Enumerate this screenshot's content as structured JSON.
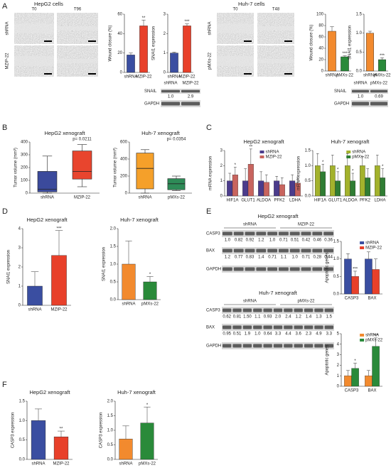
{
  "panel_letters": [
    "A",
    "B",
    "C",
    "D",
    "E",
    "F"
  ],
  "micrographs": [
    {
      "title": "HepG2 cells",
      "columns": [
        "T0",
        "T96"
      ],
      "rows": [
        "shRNA",
        "MZIP-22"
      ]
    },
    {
      "title": "Huh-7 cells",
      "columns": [
        "T0",
        "T48"
      ],
      "rows": [
        "shRNA",
        "pMXs-22"
      ]
    }
  ],
  "blots": [
    {
      "columns": [
        "shRNA",
        "MZIP-22"
      ],
      "rows": [
        {
          "name": "SNAIL",
          "values": [
            "1.0",
            "2.9"
          ]
        },
        {
          "name": "GAPDH"
        }
      ]
    },
    {
      "columns": [
        "shRNA",
        "pMXs-22"
      ],
      "rows": [
        {
          "name": "SNAIL",
          "values": [
            "1.0",
            "0.69"
          ]
        },
        {
          "name": "GAPDH"
        }
      ]
    },
    {
      "title": "HepG2 xenograft",
      "columns": [
        "shRNA",
        "MZIP-22"
      ],
      "rows": [
        {
          "name": "CASP3",
          "values": [
            "1.0",
            "0.82",
            "0.92",
            "1.2",
            "1.0",
            "0.71",
            "0.51",
            "0.42",
            "0.46",
            "0.36"
          ]
        },
        {
          "name": "BAX",
          "values": [
            "1.2",
            "0.77",
            "0.83",
            "1.4",
            "0.71",
            "1.1",
            "1.0",
            "0.71",
            "0.28",
            "0.44"
          ]
        },
        {
          "name": "GAPDH"
        }
      ]
    },
    {
      "title": "Huh-7 xenograft",
      "columns": [
        "shRNA",
        "pMXs-22"
      ],
      "rows": [
        {
          "name": "CASP3",
          "values": [
            "0.62",
            "0.81",
            "1.50",
            "1.1",
            "0.93",
            "2.0",
            "2.4",
            "1.2",
            "1.4",
            "1.3",
            "1.5"
          ]
        },
        {
          "name": "BAX",
          "values": [
            "0.95",
            "0.51",
            "1.9",
            "1.0",
            "0.64",
            "3.3",
            "4.4",
            "3.6",
            "2.3",
            "4.9",
            "3.3"
          ]
        },
        {
          "name": "GAPDH"
        }
      ]
    }
  ],
  "chart_data": [
    {
      "type": "bar",
      "ylabel": "Wound closure (%)",
      "categories": [
        "shRNA",
        "MZIP-22"
      ],
      "values": [
        18,
        48
      ],
      "errors": [
        2,
        6
      ],
      "significance": [
        null,
        "**"
      ],
      "colors": [
        "#3a4ea1",
        "#e8402a"
      ],
      "ylim": [
        0,
        60
      ],
      "yticks": [
        0,
        20,
        40,
        60
      ]
    },
    {
      "type": "bar",
      "ylabel": "SNAI1 expression",
      "categories": [
        "shRNA",
        "MZIP-22"
      ],
      "values": [
        1.0,
        2.4
      ],
      "errors": [
        0.05,
        0.1
      ],
      "significance": [
        null,
        "***"
      ],
      "colors": [
        "#3a4ea1",
        "#e8402a"
      ],
      "ylim": [
        0,
        3
      ],
      "yticks": [
        0,
        1,
        2,
        3
      ]
    },
    {
      "type": "bar",
      "ylabel": "Wound closure (%)",
      "categories": [
        "shRNA",
        "pMXs-22"
      ],
      "values": [
        70,
        25
      ],
      "errors": [
        8,
        2
      ],
      "significance": [
        null,
        "***"
      ],
      "colors": [
        "#f28a2e",
        "#2a8a3a"
      ],
      "ylim": [
        0,
        100
      ],
      "yticks": [
        0,
        20,
        40,
        60,
        80,
        100
      ]
    },
    {
      "type": "bar",
      "ylabel": "SNAI1 expression",
      "categories": [
        "shRNA",
        "pMXs-22"
      ],
      "values": [
        1.0,
        0.3
      ],
      "errors": [
        0.05,
        0.05
      ],
      "significance": [
        null,
        "***"
      ],
      "colors": [
        "#f28a2e",
        "#2a8a3a"
      ],
      "ylim": [
        0,
        1.5
      ],
      "yticks": [
        {
          "value": 0,
          "label": "0.0"
        },
        {
          "value": 0.5,
          "label": "0.5"
        },
        {
          "value": 1,
          "label": "1.0"
        },
        {
          "value": 1.5,
          "label": "1.5"
        }
      ]
    },
    {
      "type": "box",
      "title": "HepG2 xenograft",
      "ylabel": "Tumor volume (mm³)",
      "annotation": "p= 0.0211",
      "categories": [
        "shRNA",
        "MZIP-22"
      ],
      "boxes": [
        {
          "min": 0,
          "q1": 10,
          "median": 30,
          "q3": 170,
          "max": 290
        },
        {
          "min": 50,
          "q1": 110,
          "median": 170,
          "q3": 330,
          "max": 380
        }
      ],
      "colors": [
        "#3b4a9c",
        "#e8452e"
      ],
      "ylim": [
        0,
        400
      ],
      "yticks": [
        0,
        100,
        200,
        300,
        400
      ]
    },
    {
      "type": "box",
      "title": "Huh-7 xenograft",
      "ylabel": "Tumor volume (mm³)",
      "annotation": "p= 0.0354",
      "categories": [
        "shRNA",
        "pMXs-22"
      ],
      "boxes": [
        {
          "min": 0,
          "q1": 50,
          "median": 290,
          "q3": 470,
          "max": 510
        },
        {
          "min": 30,
          "q1": 40,
          "median": 110,
          "q3": 170,
          "max": 200
        }
      ],
      "colors": [
        "#f5a02a",
        "#2e8b57"
      ],
      "ylim": [
        0,
        600
      ],
      "yticks": [
        0,
        200,
        400,
        600
      ]
    },
    {
      "type": "grouped_bar",
      "title": "HepG2 xenograft",
      "ylabel": "mRNA expression",
      "categories": [
        "HIF1A",
        "GLUT1",
        "ALDOA",
        "PFK2",
        "LDHA"
      ],
      "series": [
        {
          "name": "shRNA",
          "color": "#4b3c8c",
          "values": [
            1,
            1,
            1,
            1,
            1
          ],
          "errors": [
            0.5,
            0.8,
            0.6,
            0.3,
            0.4
          ],
          "significance": [
            null,
            null,
            null,
            null,
            null
          ]
        },
        {
          "name": "MZIP-22",
          "color": "#c8645e",
          "values": [
            1.4,
            2.1,
            0.9,
            0.75,
            0.85
          ],
          "errors": [
            0.5,
            1.0,
            0.5,
            0.45,
            0.4
          ],
          "significance": [
            "*",
            "**",
            null,
            null,
            null
          ]
        }
      ],
      "ylim": [
        0,
        3
      ],
      "yticks": [
        0,
        1,
        2,
        3
      ]
    },
    {
      "type": "grouped_bar",
      "title": "Huh-7 xenograft",
      "ylabel": "mRNA expression",
      "categories": [
        "HIF1A",
        "GLUT1",
        "ALDOA",
        "PFK2",
        "LDHA"
      ],
      "series": [
        {
          "name": "shRNA",
          "color": "#a3b22c",
          "values": [
            1,
            1,
            1,
            1,
            1
          ],
          "errors": [
            0.4,
            0.35,
            0.4,
            0.3,
            0.35
          ],
          "significance": [
            null,
            null,
            null,
            null,
            null
          ]
        },
        {
          "name": "pMXs-22",
          "color": "#2f7d33",
          "values": [
            0.8,
            0.5,
            0.5,
            0.6,
            0.6
          ],
          "errors": [
            0.25,
            0.3,
            0.25,
            0.3,
            0.3
          ],
          "significance": [
            "*",
            "*",
            "*",
            null,
            "*"
          ]
        }
      ],
      "ylim": [
        0,
        1.5
      ],
      "yticks": [
        {
          "value": 0,
          "label": "0.0"
        },
        {
          "value": 0.5,
          "label": "0.5"
        },
        {
          "value": 1,
          "label": "1.0"
        },
        {
          "value": 1.5,
          "label": "1.5"
        }
      ]
    },
    {
      "type": "bar",
      "title": "HepG2 xenograft",
      "ylabel": "SNAI1 expression",
      "categories": [
        "shRNA",
        "MZIP-22"
      ],
      "values": [
        1.0,
        2.6
      ],
      "errors": [
        0.75,
        1.3
      ],
      "significance": [
        null,
        "***"
      ],
      "colors": [
        "#3a4ea1",
        "#e8402a"
      ],
      "ylim": [
        0,
        4
      ],
      "yticks": [
        0,
        1,
        2,
        3,
        4
      ]
    },
    {
      "type": "bar",
      "title": "Huh-7 xenograft",
      "ylabel": "SNAI1 expression",
      "categories": [
        "shRNA",
        "pMXs-22"
      ],
      "values": [
        1.0,
        0.5
      ],
      "errors": [
        0.65,
        0.15
      ],
      "significance": [
        null,
        "*"
      ],
      "colors": [
        "#f28a2e",
        "#2a8a3a"
      ],
      "ylim": [
        0,
        2
      ],
      "yticks": [
        {
          "value": 0,
          "label": "0.0"
        },
        {
          "value": 0.5,
          "label": "0.5"
        },
        {
          "value": 1,
          "label": "1.0"
        },
        {
          "value": 1.5,
          "label": "1.5"
        },
        {
          "value": 2,
          "label": "2.0"
        }
      ]
    },
    {
      "type": "grouped_bar",
      "ylabel": "Apoptotic genes",
      "categories": [
        "CASP3",
        "BAX"
      ],
      "series": [
        {
          "name": "shRNA",
          "color": "#3a4ea1",
          "values": [
            1,
            1
          ],
          "errors": [
            0.15,
            0.2
          ],
          "significance": [
            null,
            null
          ]
        },
        {
          "name": "MZIP-22",
          "color": "#e8402a",
          "values": [
            0.5,
            0.7
          ],
          "errors": [
            0.15,
            0.3
          ],
          "significance": [
            "***",
            null
          ]
        }
      ],
      "ylim": [
        0,
        1.5
      ],
      "yticks": [
        {
          "value": 0,
          "label": "0.0"
        },
        {
          "value": 0.5,
          "label": "0.5"
        },
        {
          "value": 1,
          "label": "1.0"
        },
        {
          "value": 1.5,
          "label": "1.5"
        }
      ]
    },
    {
      "type": "grouped_bar",
      "ylabel": "Apoptotic genes",
      "categories": [
        "CASP3",
        "BAX"
      ],
      "series": [
        {
          "name": "shRNA",
          "color": "#f28a2e",
          "values": [
            1,
            1
          ],
          "errors": [
            0.5,
            0.5
          ],
          "significance": [
            null,
            null
          ]
        },
        {
          "name": "pMXs-22",
          "color": "#2a8a3a",
          "values": [
            1.7,
            3.8
          ],
          "errors": [
            0.5,
            0.8
          ],
          "significance": [
            "*",
            "***"
          ]
        }
      ],
      "ylim": [
        0,
        5
      ],
      "yticks": [
        0,
        1,
        2,
        3,
        4,
        5
      ]
    },
    {
      "type": "bar",
      "title": "HepG2 xenograft",
      "ylabel": "CASP3 expression",
      "categories": [
        "shRNA",
        "MZIP-22"
      ],
      "values": [
        1.0,
        0.58
      ],
      "errors": [
        0.3,
        0.15
      ],
      "significance": [
        null,
        "**"
      ],
      "colors": [
        "#3a4ea1",
        "#e8402a"
      ],
      "ylim": [
        0,
        1.5
      ],
      "yticks": [
        {
          "value": 0,
          "label": "0.0"
        },
        {
          "value": 0.5,
          "label": "0.5"
        },
        {
          "value": 1,
          "label": "1.0"
        },
        {
          "value": 1.5,
          "label": "1.5"
        }
      ]
    },
    {
      "type": "bar",
      "title": "Huh-7 xenograft",
      "ylabel": "CASP3 expression",
      "categories": [
        "shRNA",
        "pMXs-22"
      ],
      "values": [
        0.7,
        1.25
      ],
      "errors": [
        0.45,
        0.55
      ],
      "significance": [
        null,
        "*"
      ],
      "colors": [
        "#f28a2e",
        "#2a8a3a"
      ],
      "ylim": [
        0,
        2
      ],
      "yticks": [
        {
          "value": 0,
          "label": "0.0"
        },
        {
          "value": 0.5,
          "label": "0.5"
        },
        {
          "value": 1,
          "label": "1.0"
        },
        {
          "value": 1.5,
          "label": "1.5"
        },
        {
          "value": 2,
          "label": "2.0"
        }
      ]
    }
  ]
}
